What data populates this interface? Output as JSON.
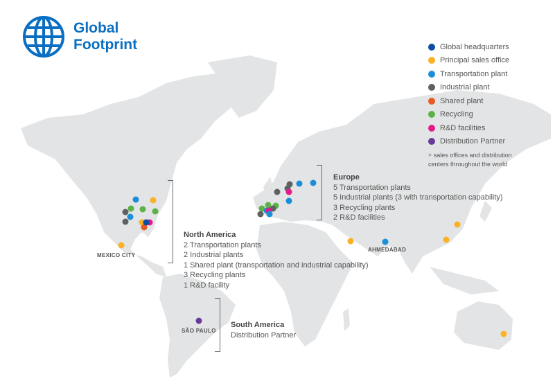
{
  "header": {
    "title_line1": "Global",
    "title_line2": "Footprint",
    "brand_color": "#0a6fc2",
    "icon": "globe-icon"
  },
  "legend": {
    "items": [
      {
        "label": "Global headquarters",
        "color": "#0b4ea2"
      },
      {
        "label": "Principal sales office",
        "color": "#fbb124"
      },
      {
        "label": "Transportation plant",
        "color": "#1a8fd8"
      },
      {
        "label": "Industrial plant",
        "color": "#5f6062"
      },
      {
        "label": "Shared plant",
        "color": "#e85a24"
      },
      {
        "label": "Recycling",
        "color": "#5cb246"
      },
      {
        "label": "R&D facilities",
        "color": "#e5198a"
      },
      {
        "label": "Distribution Partner",
        "color": "#6a3a9a"
      }
    ],
    "note": "+ sales offices and distribution centers throughout the world"
  },
  "regions": {
    "north_america": {
      "title": "North America",
      "lines": [
        "2 Transportation plants",
        "2 Industrial plants",
        "1 Shared plant (transportation and industrial capability)",
        "3 Recycling plants",
        "1 R&D facility"
      ]
    },
    "europe": {
      "title": "Europe",
      "lines": [
        "5 Transportation plants",
        "5 Industrial plants (3 with transportation capability)",
        "3 Recycling plants",
        "2 R&D facilities"
      ]
    },
    "south_america": {
      "title": "South America",
      "lines": [
        "Distribution Partner"
      ]
    }
  },
  "cities": {
    "mexico_city": "MEXICO CITY",
    "sao_paulo": "SÃO PAULO",
    "ahmedabad": "AHMEDABAD"
  },
  "map_colors": {
    "land": "#e3e4e5",
    "background": "#ffffff"
  }
}
